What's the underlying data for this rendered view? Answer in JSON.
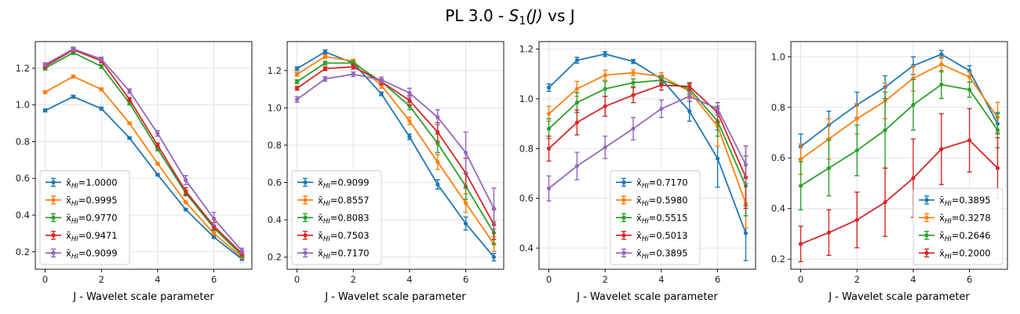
{
  "figure": {
    "title_prefix": "PL 3.0 - ",
    "title_func": "S",
    "title_sub": "1",
    "title_arg": "(J)",
    "title_suffix": " vs J"
  },
  "legend_symbol": "x̄",
  "legend_subscript": "HI",
  "chart_data": [
    {
      "type": "line",
      "xlabel": "J - Wavelet scale parameter",
      "ylabel": "",
      "x": [
        0,
        1,
        2,
        3,
        4,
        5,
        6,
        7
      ],
      "xlim": [
        -0.35,
        7.35
      ],
      "ylim": [
        0.105,
        1.345
      ],
      "xticks": [
        0,
        2,
        4,
        6
      ],
      "yticks": [
        0.2,
        0.4,
        0.6,
        0.8,
        1.0,
        1.2
      ],
      "ytick_labels": [
        "0.2",
        "0.4",
        "0.6",
        "0.8",
        "1.0",
        "1.2"
      ],
      "grid": true,
      "legend_position": "lower-left",
      "series": [
        {
          "name": "=1.0000",
          "color": "#1f77b4",
          "values": [
            0.97,
            1.045,
            0.98,
            0.82,
            0.62,
            0.43,
            0.28,
            0.16
          ],
          "errors": [
            0.008,
            0.008,
            0.008,
            0.006,
            0.006,
            0.006,
            0.006,
            0.006
          ]
        },
        {
          "name": "=0.9995",
          "color": "#ff7f0e",
          "values": [
            1.07,
            1.155,
            1.085,
            0.9,
            0.68,
            0.47,
            0.3,
            0.17
          ],
          "errors": [
            0.008,
            0.008,
            0.008,
            0.006,
            0.006,
            0.006,
            0.006,
            0.006
          ]
        },
        {
          "name": "=0.9770",
          "color": "#2ca02c",
          "values": [
            1.2,
            1.285,
            1.21,
            1.01,
            0.76,
            0.52,
            0.33,
            0.18
          ],
          "errors": [
            0.01,
            0.01,
            0.01,
            0.01,
            0.01,
            0.015,
            0.015,
            0.01
          ]
        },
        {
          "name": "=0.9471",
          "color": "#d62728",
          "values": [
            1.21,
            1.3,
            1.24,
            1.03,
            0.78,
            0.53,
            0.34,
            0.19
          ],
          "errors": [
            0.01,
            0.01,
            0.01,
            0.01,
            0.012,
            0.02,
            0.02,
            0.012
          ]
        },
        {
          "name": "=0.9099",
          "color": "#9467bd",
          "values": [
            1.22,
            1.305,
            1.25,
            1.075,
            0.845,
            0.59,
            0.38,
            0.205
          ],
          "errors": [
            0.01,
            0.01,
            0.01,
            0.012,
            0.015,
            0.025,
            0.035,
            0.015
          ]
        }
      ]
    },
    {
      "type": "line",
      "xlabel": "J - Wavelet scale parameter",
      "ylabel": "",
      "x": [
        0,
        1,
        2,
        3,
        4,
        5,
        6,
        7
      ],
      "xlim": [
        -0.35,
        7.35
      ],
      "ylim": [
        0.135,
        1.355
      ],
      "xticks": [
        0,
        2,
        4,
        6
      ],
      "yticks": [
        0.2,
        0.4,
        0.6,
        0.8,
        1.0,
        1.2
      ],
      "ytick_labels": [
        "0.2",
        "0.4",
        "0.6",
        "0.8",
        "1.0",
        "1.2"
      ],
      "grid": true,
      "legend_position": "lower-left",
      "series": [
        {
          "name": "=0.9099",
          "color": "#1f77b4",
          "values": [
            1.21,
            1.3,
            1.24,
            1.075,
            0.845,
            0.59,
            0.38,
            0.2
          ],
          "errors": [
            0.01,
            0.01,
            0.01,
            0.01,
            0.015,
            0.025,
            0.035,
            0.02
          ]
        },
        {
          "name": "=0.8557",
          "color": "#ff7f0e",
          "values": [
            1.18,
            1.275,
            1.25,
            1.12,
            0.93,
            0.71,
            0.49,
            0.27
          ],
          "errors": [
            0.01,
            0.01,
            0.01,
            0.015,
            0.02,
            0.04,
            0.05,
            0.04
          ]
        },
        {
          "name": "=0.8083",
          "color": "#2ca02c",
          "values": [
            1.14,
            1.24,
            1.24,
            1.14,
            1.01,
            0.81,
            0.58,
            0.33
          ],
          "errors": [
            0.01,
            0.01,
            0.01,
            0.015,
            0.02,
            0.05,
            0.07,
            0.06
          ]
        },
        {
          "name": "=0.7503",
          "color": "#d62728",
          "values": [
            1.105,
            1.21,
            1.22,
            1.14,
            1.04,
            0.87,
            0.65,
            0.375
          ],
          "errors": [
            0.01,
            0.01,
            0.012,
            0.015,
            0.025,
            0.05,
            0.08,
            0.08
          ]
        },
        {
          "name": "=0.7170",
          "color": "#9467bd",
          "values": [
            1.045,
            1.155,
            1.18,
            1.15,
            1.08,
            0.95,
            0.76,
            0.46
          ],
          "errors": [
            0.015,
            0.012,
            0.012,
            0.015,
            0.025,
            0.04,
            0.11,
            0.11
          ]
        }
      ]
    },
    {
      "type": "line",
      "xlabel": "J - Wavelet scale parameter",
      "ylabel": "",
      "x": [
        0,
        1,
        2,
        3,
        4,
        5,
        6,
        7
      ],
      "xlim": [
        -0.35,
        7.35
      ],
      "ylim": [
        0.315,
        1.23
      ],
      "xticks": [
        0,
        2,
        4,
        6
      ],
      "yticks": [
        0.4,
        0.6,
        0.8,
        1.0,
        1.2
      ],
      "ytick_labels": [
        "0.4",
        "0.6",
        "0.8",
        "1.0",
        "1.2"
      ],
      "grid": true,
      "legend_position": "lower-center",
      "series": [
        {
          "name": "=0.7170",
          "color": "#1f77b4",
          "values": [
            1.045,
            1.155,
            1.18,
            1.15,
            1.08,
            0.95,
            0.76,
            0.46
          ],
          "errors": [
            0.015,
            0.012,
            0.01,
            0.008,
            0.015,
            0.04,
            0.115,
            0.11
          ]
        },
        {
          "name": "=0.5980",
          "color": "#ff7f0e",
          "values": [
            0.94,
            1.04,
            1.095,
            1.105,
            1.09,
            1.03,
            0.89,
            0.58
          ],
          "errors": [
            0.03,
            0.03,
            0.02,
            0.012,
            0.015,
            0.03,
            0.08,
            0.1
          ]
        },
        {
          "name": "=0.5515",
          "color": "#2ca02c",
          "values": [
            0.88,
            0.985,
            1.04,
            1.065,
            1.075,
            1.04,
            0.91,
            0.65
          ],
          "errors": [
            0.04,
            0.04,
            0.03,
            0.015,
            0.015,
            0.02,
            0.06,
            0.12
          ]
        },
        {
          "name": "=0.5013",
          "color": "#d62728",
          "values": [
            0.8,
            0.905,
            0.97,
            1.015,
            1.055,
            1.05,
            0.945,
            0.685
          ],
          "errors": [
            0.05,
            0.05,
            0.04,
            0.03,
            0.02,
            0.015,
            0.04,
            0.125
          ]
        },
        {
          "name": "=0.3895",
          "color": "#9467bd",
          "values": [
            0.64,
            0.73,
            0.805,
            0.88,
            0.96,
            1.01,
            0.96,
            0.735
          ],
          "errors": [
            0.05,
            0.055,
            0.045,
            0.045,
            0.035,
            0.02,
            0.025,
            0.075
          ]
        }
      ]
    },
    {
      "type": "line",
      "xlabel": "J - Wavelet scale parameter",
      "ylabel": "",
      "x": [
        0,
        1,
        2,
        3,
        4,
        5,
        6,
        7
      ],
      "xlim": [
        -0.35,
        7.35
      ],
      "ylim": [
        0.16,
        1.06
      ],
      "xticks": [
        0,
        2,
        4,
        6
      ],
      "yticks": [
        0.2,
        0.4,
        0.6,
        0.8,
        1.0
      ],
      "ytick_labels": [
        "0.2",
        "0.4",
        "0.6",
        "0.8",
        "1.0"
      ],
      "grid": true,
      "legend_position": "lower-right",
      "series": [
        {
          "name": "=0.3895",
          "color": "#1f77b4",
          "values": [
            0.645,
            0.73,
            0.81,
            0.88,
            0.965,
            1.01,
            0.945,
            0.735
          ],
          "errors": [
            0.05,
            0.055,
            0.05,
            0.045,
            0.035,
            0.015,
            0.02,
            0.04
          ]
        },
        {
          "name": "=0.3278",
          "color": "#ff7f0e",
          "values": [
            0.595,
            0.675,
            0.755,
            0.825,
            0.915,
            0.97,
            0.92,
            0.76
          ],
          "errors": [
            0.06,
            0.08,
            0.06,
            0.07,
            0.05,
            0.03,
            0.02,
            0.06
          ]
        },
        {
          "name": "=0.2646",
          "color": "#2ca02c",
          "values": [
            0.49,
            0.56,
            0.63,
            0.71,
            0.81,
            0.89,
            0.87,
            0.71
          ],
          "errors": [
            0.095,
            0.11,
            0.1,
            0.15,
            0.1,
            0.055,
            0.03,
            0.07
          ]
        },
        {
          "name": "=0.2000",
          "color": "#d62728",
          "values": [
            0.26,
            0.305,
            0.355,
            0.425,
            0.52,
            0.635,
            0.67,
            0.56
          ],
          "errors": [
            0.07,
            0.09,
            0.11,
            0.135,
            0.155,
            0.14,
            0.125,
            0.12
          ]
        }
      ]
    }
  ]
}
